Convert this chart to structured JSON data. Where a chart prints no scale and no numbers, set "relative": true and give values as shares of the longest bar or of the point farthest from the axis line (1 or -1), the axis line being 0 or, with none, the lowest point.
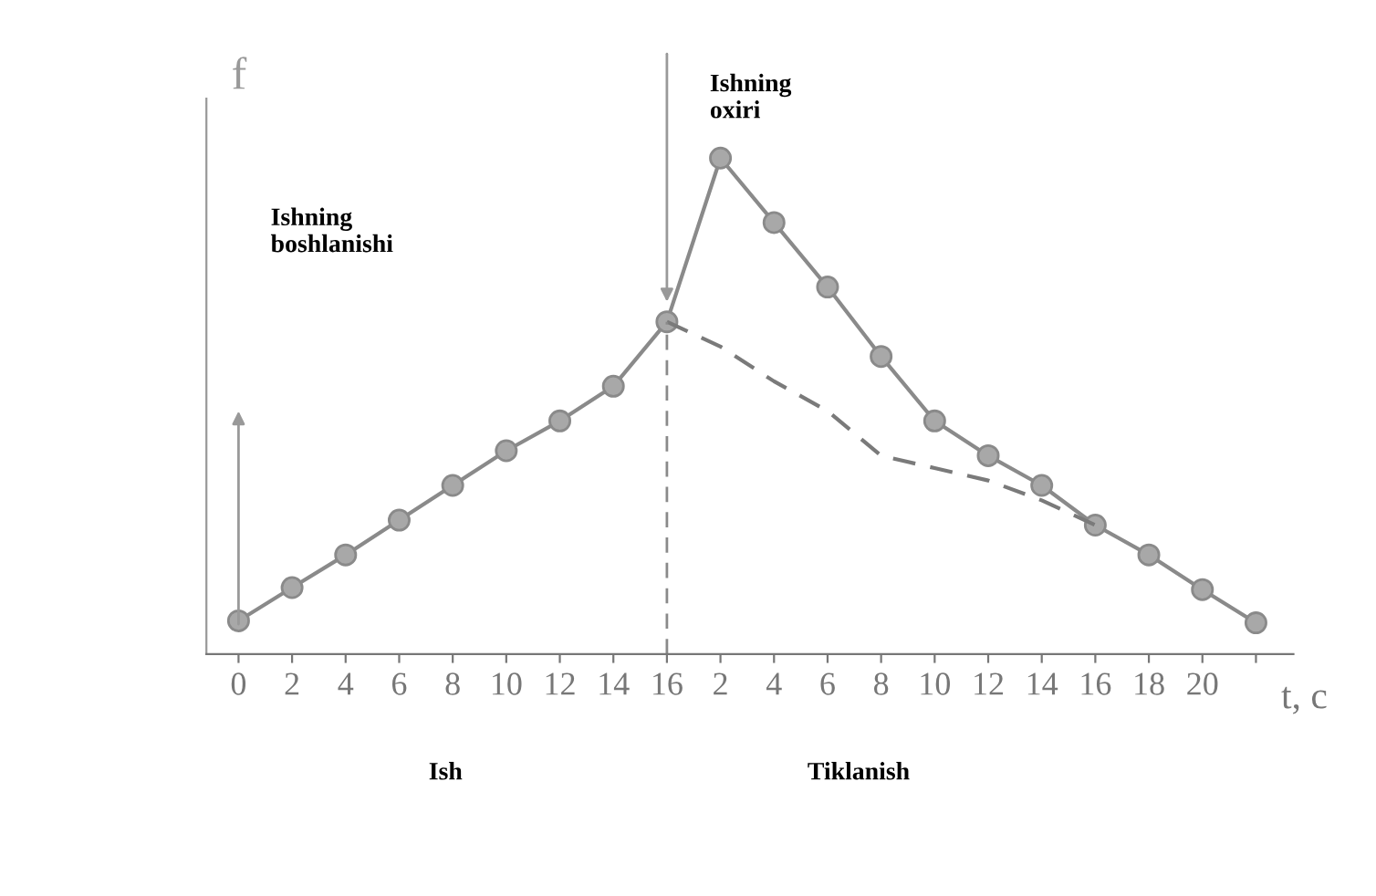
{
  "chart_data": {
    "type": "line",
    "xlabel": "t, c",
    "ylabel": "f",
    "relative": true,
    "grid": false,
    "categories": [
      "0",
      "2",
      "4",
      "6",
      "8",
      "10",
      "12",
      "14",
      "16",
      "2",
      "4",
      "6",
      "8",
      "10",
      "12",
      "14",
      "16",
      "18",
      "20",
      null
    ],
    "series": [
      {
        "color": "#8a8a8a",
        "line_style": "solid",
        "marker": "circle",
        "values": [
          0.067,
          0.134,
          0.2,
          0.27,
          0.34,
          0.41,
          0.47,
          0.54,
          0.67,
          1,
          0.87,
          0.74,
          0.6,
          0.47,
          0.4,
          0.34,
          0.26,
          0.2,
          0.13,
          0.063
        ]
      },
      {
        "color": "#7a7a7a",
        "line_style": "dashed",
        "marker": "none",
        "values": [
          null,
          null,
          null,
          null,
          null,
          null,
          null,
          null,
          0.67,
          0.62,
          0.55,
          0.49,
          0.4,
          0.375,
          0.35,
          0.31,
          0.26,
          null,
          null,
          null
        ]
      }
    ],
    "ref_lines": [
      {
        "axis": "x",
        "value": "16",
        "line_style": "dashed",
        "color": "#8a8a8a"
      }
    ],
    "annotations": [
      "Ishning boshlanishi",
      "Ishning oxiri",
      "Ish",
      "Tiklanish"
    ]
  }
}
